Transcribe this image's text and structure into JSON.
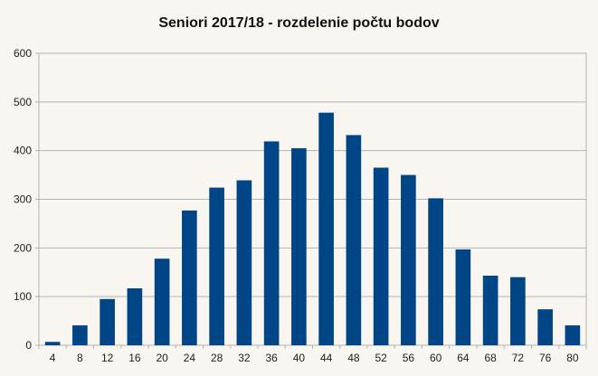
{
  "chart_data": {
    "type": "bar",
    "title": "Seniori 2017/18 - rozdelenie počtu bodov",
    "xlabel": "",
    "ylabel": "",
    "categories": [
      "4",
      "8",
      "12",
      "16",
      "20",
      "24",
      "28",
      "32",
      "36",
      "40",
      "44",
      "48",
      "52",
      "56",
      "60",
      "64",
      "68",
      "72",
      "76",
      "80"
    ],
    "values": [
      7,
      41,
      95,
      117,
      178,
      277,
      324,
      339,
      419,
      405,
      478,
      432,
      365,
      350,
      302,
      197,
      143,
      140,
      74,
      41
    ],
    "ylim": [
      0,
      600
    ],
    "yticks": [
      0,
      100,
      200,
      300,
      400,
      500,
      600
    ],
    "grid": true,
    "legend": "none",
    "colors": {
      "bar": "#004586",
      "grid": "#b3b3b3",
      "axis": "#b3b3b3",
      "background": "#f9f5f0"
    }
  }
}
